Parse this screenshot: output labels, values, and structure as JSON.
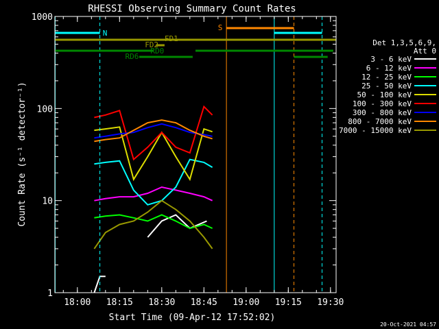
{
  "chart_data": {
    "type": "line",
    "title": "RHESSI Observing Summary Count Rates",
    "xlabel": "Start Time (09-Apr-12 17:52:02)",
    "ylabel": "Count Rate (s⁻¹ detector⁻¹)",
    "xlim": [
      "17:52",
      "19:32"
    ],
    "ylim": [
      1,
      1000
    ],
    "yscale": "log",
    "x_ticks": [
      "18:00",
      "18:15",
      "18:30",
      "18:45",
      "19:00",
      "19:15",
      "19:30"
    ],
    "y_ticks": [
      "1",
      "10",
      "100",
      "1000"
    ],
    "grid": false,
    "legend_header": [
      "Det 1,3,5,6,9,",
      "Att 0"
    ],
    "legend_position": "right",
    "footer_date": "20-Oct-2021 04:57",
    "series": [
      {
        "name": "3 - 6 keV",
        "color": "#ffffff",
        "x": [
          "18:06",
          "18:08",
          "18:10",
          "18:20",
          "18:25",
          "18:30",
          "18:35",
          "18:40",
          "18:46"
        ],
        "values": [
          1,
          1.5,
          1.5,
          null,
          4,
          6,
          7,
          5,
          6
        ]
      },
      {
        "name": "6 - 12 keV",
        "color": "#ff00ff",
        "x": [
          "18:06",
          "18:10",
          "18:15",
          "18:20",
          "18:25",
          "18:30",
          "18:35",
          "18:40",
          "18:45",
          "18:48"
        ],
        "values": [
          10,
          10.5,
          11,
          11,
          12,
          14,
          13,
          12,
          11,
          10
        ]
      },
      {
        "name": "12 - 25 keV",
        "color": "#00ff00",
        "x": [
          "18:06",
          "18:10",
          "18:15",
          "18:20",
          "18:25",
          "18:30",
          "18:35",
          "18:40",
          "18:45",
          "18:48"
        ],
        "values": [
          6.5,
          6.8,
          7,
          6.5,
          6,
          7,
          6,
          5,
          5.5,
          5
        ]
      },
      {
        "name": "25 - 50 keV",
        "color": "#00ffff",
        "x": [
          "18:06",
          "18:10",
          "18:15",
          "18:20",
          "18:25",
          "18:30",
          "18:35",
          "18:40",
          "18:45",
          "18:48"
        ],
        "values": [
          25,
          26,
          27,
          13,
          9,
          10,
          14,
          28,
          26,
          23
        ]
      },
      {
        "name": "50 - 100 keV",
        "color": "#dddd00",
        "x": [
          "18:06",
          "18:10",
          "18:15",
          "18:20",
          "18:25",
          "18:30",
          "18:35",
          "18:40",
          "18:45",
          "18:48"
        ],
        "values": [
          58,
          60,
          63,
          17,
          30,
          55,
          30,
          17,
          60,
          56
        ]
      },
      {
        "name": "100 - 300 keV",
        "color": "#ff0000",
        "x": [
          "18:06",
          "18:10",
          "18:15",
          "18:20",
          "18:25",
          "18:30",
          "18:35",
          "18:40",
          "18:45",
          "18:48"
        ],
        "values": [
          80,
          85,
          95,
          28,
          38,
          55,
          38,
          33,
          105,
          85
        ]
      },
      {
        "name": "300 - 800 keV",
        "color": "#0000ff",
        "x": [
          "18:06",
          "18:10",
          "18:15",
          "18:20",
          "18:25",
          "18:30",
          "18:35",
          "18:40",
          "18:45",
          "18:48"
        ],
        "values": [
          48,
          50,
          53,
          55,
          62,
          68,
          62,
          55,
          52,
          50
        ]
      },
      {
        "name": "800 - 7000 keV",
        "color": "#ff8800",
        "x": [
          "18:06",
          "18:10",
          "18:15",
          "18:20",
          "18:25",
          "18:30",
          "18:35",
          "18:40",
          "18:45",
          "18:48"
        ],
        "values": [
          44,
          46,
          48,
          58,
          70,
          75,
          70,
          58,
          50,
          47
        ]
      },
      {
        "name": "7000 - 15000 keV",
        "color": "#999900",
        "x": [
          "18:06",
          "18:10",
          "18:15",
          "18:20",
          "18:25",
          "18:30",
          "18:35",
          "18:40",
          "18:45",
          "18:48"
        ],
        "values": [
          3,
          4.5,
          5.5,
          6,
          7.5,
          10,
          8,
          6,
          4,
          3
        ]
      }
    ],
    "annotations": [
      {
        "label": "N",
        "color": "#00ffff"
      },
      {
        "label": "S",
        "color": "#ff8800"
      },
      {
        "label": "FD1",
        "color": "#999900"
      },
      {
        "label": "FD2",
        "color": "#999900"
      },
      {
        "label": "RD0",
        "color": "#008800"
      },
      {
        "label": "RD6",
        "color": "#008800"
      }
    ]
  }
}
